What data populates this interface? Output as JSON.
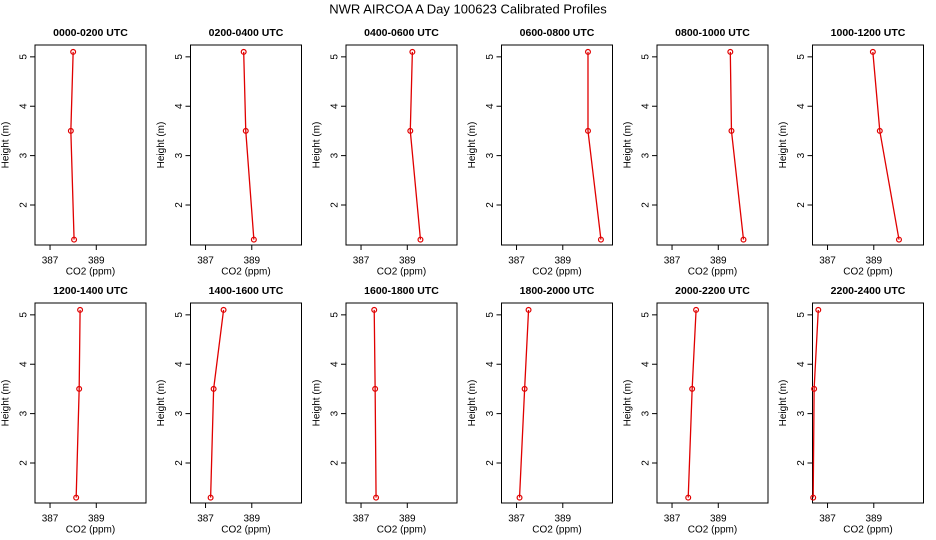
{
  "title": "NWR AIRCOA A  Day 100623  Calibrated Profiles",
  "chart_data": [
    {
      "type": "line",
      "title": "0000-0200 UTC",
      "xlabel": "CO2 (ppm)",
      "ylabel": "Height (m)",
      "color": "#e00000",
      "x": [
        388.0,
        387.9,
        388.04
      ],
      "values": [
        5.1,
        3.5,
        1.3
      ],
      "xlim": [
        386.35,
        391.15
      ],
      "ylim": [
        1.19,
        5.24
      ],
      "xticks": [
        387,
        389
      ],
      "yticks": [
        2,
        3,
        4,
        5
      ]
    },
    {
      "type": "line",
      "title": "0200-0400 UTC",
      "xlabel": "CO2 (ppm)",
      "ylabel": "Height (m)",
      "color": "#e00000",
      "x": [
        388.65,
        388.74,
        389.09
      ],
      "values": [
        5.1,
        3.5,
        1.3
      ],
      "xlim": [
        386.35,
        391.15
      ],
      "ylim": [
        1.19,
        5.24
      ],
      "xticks": [
        387,
        389
      ],
      "yticks": [
        2,
        3,
        4,
        5
      ]
    },
    {
      "type": "line",
      "title": "0400-0600 UTC",
      "xlabel": "CO2 (ppm)",
      "ylabel": "Height (m)",
      "color": "#e00000",
      "x": [
        389.22,
        389.13,
        389.57
      ],
      "values": [
        5.1,
        3.5,
        1.3
      ],
      "xlim": [
        386.35,
        391.15
      ],
      "ylim": [
        1.19,
        5.24
      ],
      "xticks": [
        387,
        389
      ],
      "yticks": [
        2,
        3,
        4,
        5
      ]
    },
    {
      "type": "line",
      "title": "0600-0800 UTC",
      "xlabel": "CO2 (ppm)",
      "ylabel": "Height (m)",
      "color": "#e00000",
      "x": [
        390.09,
        390.09,
        390.65
      ],
      "values": [
        5.1,
        3.5,
        1.3
      ],
      "xlim": [
        386.35,
        391.15
      ],
      "ylim": [
        1.19,
        5.24
      ],
      "xticks": [
        387,
        389
      ],
      "yticks": [
        2,
        3,
        4,
        5
      ]
    },
    {
      "type": "line",
      "title": "0800-1000 UTC",
      "xlabel": "CO2 (ppm)",
      "ylabel": "Height (m)",
      "color": "#e00000",
      "x": [
        389.52,
        389.57,
        390.09
      ],
      "values": [
        5.1,
        3.5,
        1.3
      ],
      "xlim": [
        386.35,
        391.15
      ],
      "ylim": [
        1.19,
        5.24
      ],
      "xticks": [
        387,
        389
      ],
      "yticks": [
        2,
        3,
        4,
        5
      ]
    },
    {
      "type": "line",
      "title": "1000-1200 UTC",
      "xlabel": "CO2 (ppm)",
      "ylabel": "Height (m)",
      "color": "#e00000",
      "x": [
        388.96,
        389.26,
        390.09
      ],
      "values": [
        5.1,
        3.5,
        1.3
      ],
      "xlim": [
        386.35,
        391.15
      ],
      "ylim": [
        1.19,
        5.24
      ],
      "xticks": [
        387,
        389
      ],
      "yticks": [
        2,
        3,
        4,
        5
      ]
    },
    {
      "type": "line",
      "title": "1200-1400 UTC",
      "xlabel": "CO2 (ppm)",
      "ylabel": "Height (m)",
      "color": "#e00000",
      "x": [
        388.3,
        388.26,
        388.13
      ],
      "values": [
        5.1,
        3.5,
        1.3
      ],
      "xlim": [
        386.35,
        391.15
      ],
      "ylim": [
        1.19,
        5.24
      ],
      "xticks": [
        387,
        389
      ],
      "yticks": [
        2,
        3,
        4,
        5
      ]
    },
    {
      "type": "line",
      "title": "1400-1600 UTC",
      "xlabel": "CO2 (ppm)",
      "ylabel": "Height (m)",
      "color": "#e00000",
      "x": [
        387.78,
        387.35,
        387.22
      ],
      "values": [
        5.1,
        3.5,
        1.3
      ],
      "xlim": [
        386.35,
        391.15
      ],
      "ylim": [
        1.19,
        5.24
      ],
      "xticks": [
        387,
        389
      ],
      "yticks": [
        2,
        3,
        4,
        5
      ]
    },
    {
      "type": "line",
      "title": "1600-1800 UTC",
      "xlabel": "CO2 (ppm)",
      "ylabel": "Height (m)",
      "color": "#e00000",
      "x": [
        387.57,
        387.61,
        387.65
      ],
      "values": [
        5.1,
        3.5,
        1.3
      ],
      "xlim": [
        386.35,
        391.15
      ],
      "ylim": [
        1.19,
        5.24
      ],
      "xticks": [
        387,
        389
      ],
      "yticks": [
        2,
        3,
        4,
        5
      ]
    },
    {
      "type": "line",
      "title": "1800-2000 UTC",
      "xlabel": "CO2 (ppm)",
      "ylabel": "Height (m)",
      "color": "#e00000",
      "x": [
        387.52,
        387.35,
        387.13
      ],
      "values": [
        5.1,
        3.5,
        1.3
      ],
      "xlim": [
        386.35,
        391.15
      ],
      "ylim": [
        1.19,
        5.24
      ],
      "xticks": [
        387,
        389
      ],
      "yticks": [
        2,
        3,
        4,
        5
      ]
    },
    {
      "type": "line",
      "title": "2000-2200 UTC",
      "xlabel": "CO2 (ppm)",
      "ylabel": "Height (m)",
      "color": "#e00000",
      "x": [
        388.04,
        387.87,
        387.7
      ],
      "values": [
        5.1,
        3.5,
        1.3
      ],
      "xlim": [
        386.35,
        391.15
      ],
      "ylim": [
        1.19,
        5.24
      ],
      "xticks": [
        387,
        389
      ],
      "yticks": [
        2,
        3,
        4,
        5
      ]
    },
    {
      "type": "line",
      "title": "2200-2400 UTC",
      "xlabel": "CO2 (ppm)",
      "ylabel": "Height (m)",
      "color": "#e00000",
      "x": [
        386.6,
        386.42,
        386.38
      ],
      "values": [
        5.1,
        3.5,
        1.3
      ],
      "xlim": [
        386.35,
        391.15
      ],
      "ylim": [
        1.19,
        5.24
      ],
      "xticks": [
        387,
        389
      ],
      "yticks": [
        2,
        3,
        4,
        5
      ]
    }
  ]
}
